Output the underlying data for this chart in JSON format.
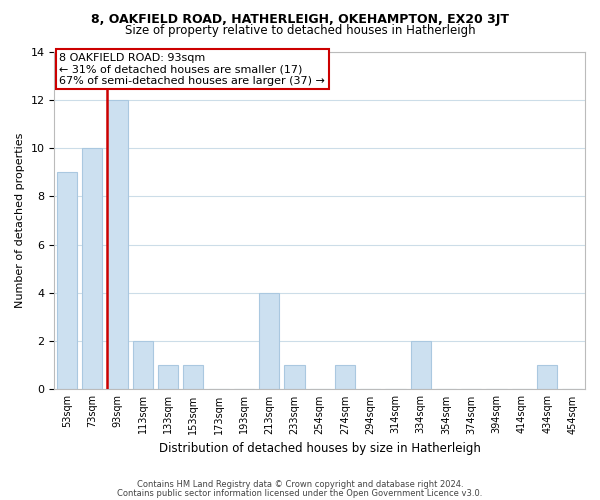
{
  "title1": "8, OAKFIELD ROAD, HATHERLEIGH, OKEHAMPTON, EX20 3JT",
  "title2": "Size of property relative to detached houses in Hatherleigh",
  "xlabel": "Distribution of detached houses by size in Hatherleigh",
  "ylabel": "Number of detached properties",
  "categories": [
    "53sqm",
    "73sqm",
    "93sqm",
    "113sqm",
    "133sqm",
    "153sqm",
    "173sqm",
    "193sqm",
    "213sqm",
    "233sqm",
    "254sqm",
    "274sqm",
    "294sqm",
    "314sqm",
    "334sqm",
    "354sqm",
    "374sqm",
    "394sqm",
    "414sqm",
    "434sqm",
    "454sqm"
  ],
  "values": [
    9,
    10,
    12,
    2,
    1,
    1,
    0,
    0,
    4,
    1,
    0,
    1,
    0,
    0,
    2,
    0,
    0,
    0,
    0,
    1,
    0
  ],
  "highlight_index": 2,
  "bar_color": "#cce0f0",
  "bar_edge_color": "#aac8e0",
  "highlight_line_color": "#cc0000",
  "annotation_box_edge": "#cc0000",
  "annotation_text": "8 OAKFIELD ROAD: 93sqm\n← 31% of detached houses are smaller (17)\n67% of semi-detached houses are larger (37) →",
  "ylim": [
    0,
    14
  ],
  "yticks": [
    0,
    2,
    4,
    6,
    8,
    10,
    12,
    14
  ],
  "footnote1": "Contains HM Land Registry data © Crown copyright and database right 2024.",
  "footnote2": "Contains public sector information licensed under the Open Government Licence v3.0.",
  "bg_color": "#ffffff",
  "grid_color": "#ccdde8"
}
